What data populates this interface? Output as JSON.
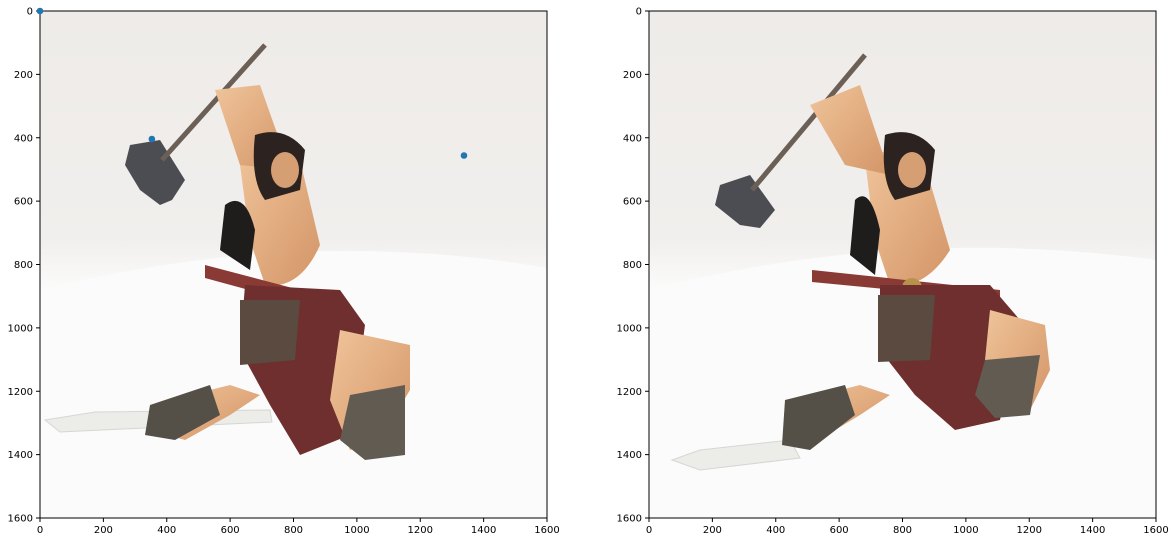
{
  "chart_data": [
    {
      "type": "scatter",
      "image": "photo of a barbarian warrior figurine swinging a war hammer on a white backdrop (view 1)",
      "xlim": [
        0,
        1600
      ],
      "ylim": [
        1600,
        0
      ],
      "x_ticks": [
        0,
        200,
        400,
        600,
        800,
        1000,
        1200,
        1400,
        1600
      ],
      "y_ticks": [
        0,
        200,
        400,
        600,
        800,
        1000,
        1200,
        1400,
        1600
      ],
      "points": [
        {
          "x": 0,
          "y": 0
        },
        {
          "x": 353,
          "y": 404
        },
        {
          "x": 1338,
          "y": 456
        }
      ],
      "point_color": "#1f77b4"
    },
    {
      "type": "scatter",
      "image": "photo of the same figurine from a slightly rotated viewpoint (view 2)",
      "xlim": [
        0,
        1600
      ],
      "ylim": [
        1600,
        0
      ],
      "x_ticks": [
        0,
        200,
        400,
        600,
        800,
        1000,
        1200,
        1400,
        1600
      ],
      "y_ticks": [
        0,
        200,
        400,
        600,
        800,
        1000,
        1200,
        1400,
        1600
      ],
      "points": []
    }
  ]
}
